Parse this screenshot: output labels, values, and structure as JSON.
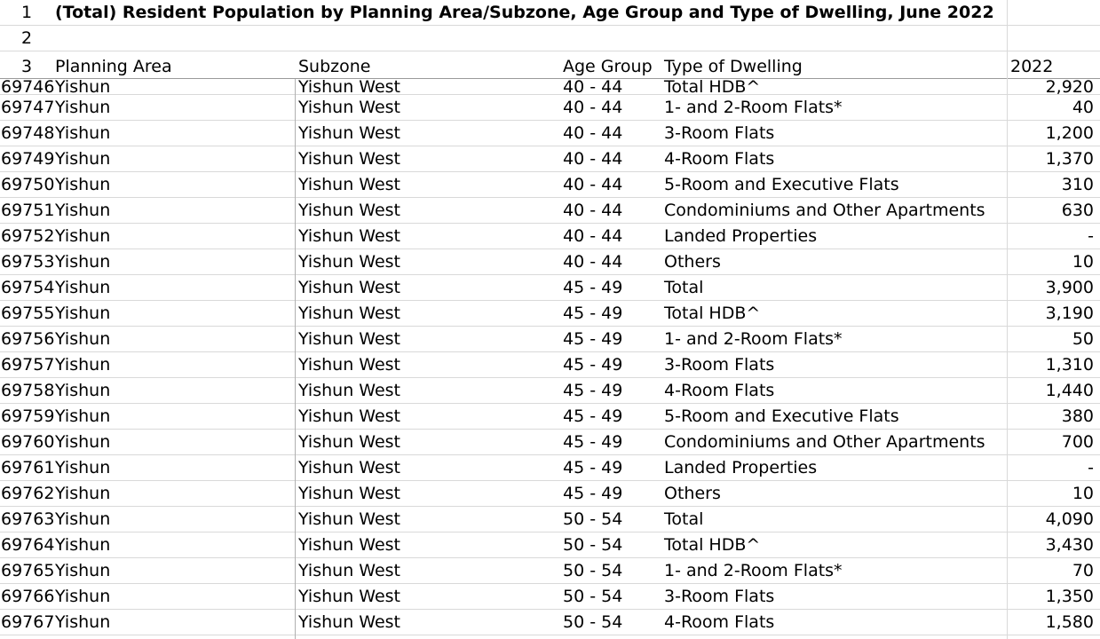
{
  "title": "(Total) Resident Population by Planning Area/Subzone, Age Group and Type of Dwelling, June 2022",
  "header_rows": [
    "1",
    "2",
    "3"
  ],
  "columns": {
    "planning_area": "Planning Area",
    "subzone": "Subzone",
    "age_group": "Age Group",
    "type_of_dwelling": "Type of Dwelling",
    "year": "2022"
  },
  "rows": [
    {
      "num": "69746",
      "area": "Yishun",
      "subzone": "Yishun West",
      "age": "40 - 44",
      "type": "Total HDB^",
      "value": "2,920"
    },
    {
      "num": "69747",
      "area": "Yishun",
      "subzone": "Yishun West",
      "age": "40 - 44",
      "type": "1- and 2-Room Flats*",
      "value": "40"
    },
    {
      "num": "69748",
      "area": "Yishun",
      "subzone": "Yishun West",
      "age": "40 - 44",
      "type": "3-Room Flats",
      "value": "1,200"
    },
    {
      "num": "69749",
      "area": "Yishun",
      "subzone": "Yishun West",
      "age": "40 - 44",
      "type": "4-Room Flats",
      "value": "1,370"
    },
    {
      "num": "69750",
      "area": "Yishun",
      "subzone": "Yishun West",
      "age": "40 - 44",
      "type": "5-Room and Executive Flats",
      "value": "310"
    },
    {
      "num": "69751",
      "area": "Yishun",
      "subzone": "Yishun West",
      "age": "40 - 44",
      "type": "Condominiums and Other Apartments",
      "value": "630"
    },
    {
      "num": "69752",
      "area": "Yishun",
      "subzone": "Yishun West",
      "age": "40 - 44",
      "type": "Landed Properties",
      "value": "-"
    },
    {
      "num": "69753",
      "area": "Yishun",
      "subzone": "Yishun West",
      "age": "40 - 44",
      "type": "Others",
      "value": "10"
    },
    {
      "num": "69754",
      "area": "Yishun",
      "subzone": "Yishun West",
      "age": "45 - 49",
      "type": "Total",
      "value": "3,900"
    },
    {
      "num": "69755",
      "area": "Yishun",
      "subzone": "Yishun West",
      "age": "45 - 49",
      "type": "Total HDB^",
      "value": "3,190"
    },
    {
      "num": "69756",
      "area": "Yishun",
      "subzone": "Yishun West",
      "age": "45 - 49",
      "type": "1- and 2-Room Flats*",
      "value": "50"
    },
    {
      "num": "69757",
      "area": "Yishun",
      "subzone": "Yishun West",
      "age": "45 - 49",
      "type": "3-Room Flats",
      "value": "1,310"
    },
    {
      "num": "69758",
      "area": "Yishun",
      "subzone": "Yishun West",
      "age": "45 - 49",
      "type": "4-Room Flats",
      "value": "1,440"
    },
    {
      "num": "69759",
      "area": "Yishun",
      "subzone": "Yishun West",
      "age": "45 - 49",
      "type": "5-Room and Executive Flats",
      "value": "380"
    },
    {
      "num": "69760",
      "area": "Yishun",
      "subzone": "Yishun West",
      "age": "45 - 49",
      "type": "Condominiums and Other Apartments",
      "value": "700"
    },
    {
      "num": "69761",
      "area": "Yishun",
      "subzone": "Yishun West",
      "age": "45 - 49",
      "type": "Landed Properties",
      "value": "-"
    },
    {
      "num": "69762",
      "area": "Yishun",
      "subzone": "Yishun West",
      "age": "45 - 49",
      "type": "Others",
      "value": "10"
    },
    {
      "num": "69763",
      "area": "Yishun",
      "subzone": "Yishun West",
      "age": "50 - 54",
      "type": "Total",
      "value": "4,090"
    },
    {
      "num": "69764",
      "area": "Yishun",
      "subzone": "Yishun West",
      "age": "50 - 54",
      "type": "Total HDB^",
      "value": "3,430"
    },
    {
      "num": "69765",
      "area": "Yishun",
      "subzone": "Yishun West",
      "age": "50 - 54",
      "type": "1- and 2-Room Flats*",
      "value": "70"
    },
    {
      "num": "69766",
      "area": "Yishun",
      "subzone": "Yishun West",
      "age": "50 - 54",
      "type": "3-Room Flats",
      "value": "1,350"
    },
    {
      "num": "69767",
      "area": "Yishun",
      "subzone": "Yishun West",
      "age": "50 - 54",
      "type": "4-Room Flats",
      "value": "1,580"
    }
  ]
}
